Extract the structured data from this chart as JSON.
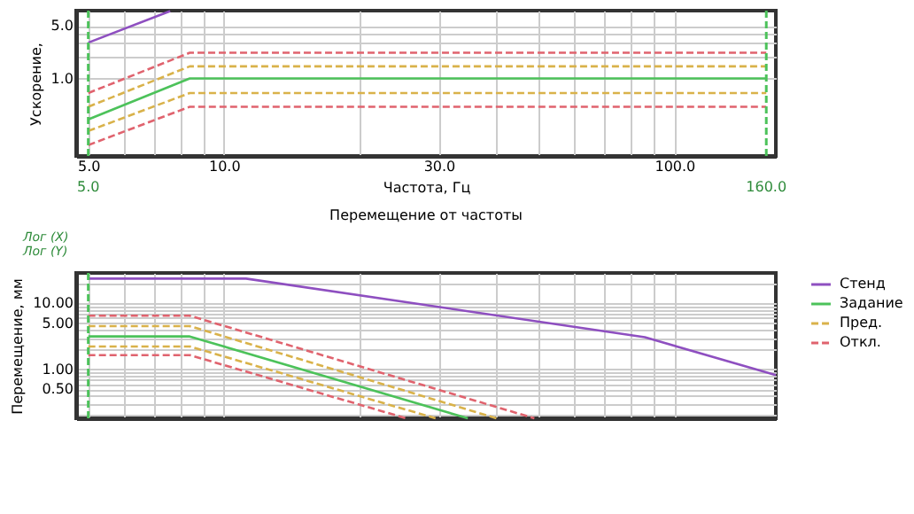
{
  "chart_data": [
    {
      "type": "line",
      "ylabel": "Ускорение,",
      "xlabel": "Частота, Гц",
      "log": "xy",
      "grid": true,
      "marker": "none",
      "xlim": [
        4.7,
        168
      ],
      "ylim": [
        0.093,
        8
      ],
      "xticks": [
        {
          "value": 5,
          "label": "5.0"
        },
        {
          "value": 6,
          "label": null
        },
        {
          "value": 7,
          "label": null
        },
        {
          "value": 8,
          "label": null
        },
        {
          "value": 9,
          "label": null
        },
        {
          "value": 10,
          "label": "10.0"
        },
        {
          "value": 20,
          "label": null
        },
        {
          "value": 30,
          "label": "30.0"
        },
        {
          "value": 40,
          "label": null
        },
        {
          "value": 50,
          "label": null
        },
        {
          "value": 60,
          "label": null
        },
        {
          "value": 70,
          "label": null
        },
        {
          "value": 80,
          "label": null
        },
        {
          "value": 90,
          "label": null
        },
        {
          "value": 100,
          "label": "100.0"
        }
      ],
      "yticks": [
        {
          "value": 1,
          "label": "1.0"
        },
        {
          "value": 2,
          "label": null
        },
        {
          "value": 3,
          "label": null
        },
        {
          "value": 4,
          "label": null
        },
        {
          "value": 5,
          "label": "5.0"
        }
      ],
      "series": [
        {
          "color": "#8e4fc0",
          "line_style": "solid",
          "x": [
            5,
            7.6
          ],
          "values": [
            3.0,
            7.9
          ]
        },
        {
          "color": "#e0636e",
          "line_style": "dashed",
          "x": [
            5,
            8.4,
            160
          ],
          "values": [
            0.64,
            2.2,
            2.2
          ]
        },
        {
          "color": "#d9b24a",
          "line_style": "dashed",
          "x": [
            5,
            8.4,
            160
          ],
          "values": [
            0.42,
            1.45,
            1.45
          ]
        },
        {
          "color": "#4cc25a",
          "line_style": "solid",
          "x": [
            5,
            8.4,
            160
          ],
          "values": [
            0.285,
            1.0,
            1.0
          ]
        },
        {
          "color": "#d9b24a",
          "line_style": "dashed",
          "x": [
            5,
            8.4,
            160
          ],
          "values": [
            0.2,
            0.64,
            0.64
          ]
        },
        {
          "color": "#e0636e",
          "line_style": "dashed",
          "x": [
            5,
            8.4,
            160
          ],
          "values": [
            0.13,
            0.42,
            0.42
          ]
        }
      ],
      "ref_lines": [
        {
          "axis": "x",
          "value": 5,
          "label": "5.0",
          "color": "#4cc25a",
          "line_style": "dashed"
        },
        {
          "axis": "x",
          "value": 160,
          "label": "160.0",
          "color": "#4cc25a",
          "line_style": "dashed"
        }
      ]
    },
    {
      "type": "line",
      "title": "Перемещение от частоты",
      "ylabel": "Перемещение, мм",
      "annotations": [
        "Лог (X)",
        "Лог (Y)"
      ],
      "log": "xy",
      "grid": true,
      "marker": "none",
      "legend": "right",
      "tick_labels": "y",
      "xlim": [
        4.7,
        168
      ],
      "ylim": [
        0.18,
        29
      ],
      "xticks": [
        {
          "value": 5,
          "label": null
        },
        {
          "value": 6,
          "label": null
        },
        {
          "value": 7,
          "label": null
        },
        {
          "value": 8,
          "label": null
        },
        {
          "value": 9,
          "label": null
        },
        {
          "value": 10,
          "label": null
        },
        {
          "value": 20,
          "label": null
        },
        {
          "value": 30,
          "label": null
        },
        {
          "value": 40,
          "label": null
        },
        {
          "value": 50,
          "label": null
        },
        {
          "value": 60,
          "label": null
        },
        {
          "value": 70,
          "label": null
        },
        {
          "value": 80,
          "label": null
        },
        {
          "value": 90,
          "label": null
        },
        {
          "value": 100,
          "label": null
        }
      ],
      "yticks": [
        {
          "value": 0.2,
          "label": null
        },
        {
          "value": 0.3,
          "label": null
        },
        {
          "value": 0.4,
          "label": null
        },
        {
          "value": 0.5,
          "label": "0.50"
        },
        {
          "value": 0.6,
          "label": null
        },
        {
          "value": 0.7,
          "label": null
        },
        {
          "value": 0.8,
          "label": null
        },
        {
          "value": 0.9,
          "label": null
        },
        {
          "value": 1,
          "label": "1.00"
        },
        {
          "value": 2,
          "label": null
        },
        {
          "value": 3,
          "label": null
        },
        {
          "value": 4,
          "label": null
        },
        {
          "value": 5,
          "label": "5.00"
        },
        {
          "value": 6,
          "label": null
        },
        {
          "value": 7,
          "label": null
        },
        {
          "value": 8,
          "label": null
        },
        {
          "value": 9,
          "label": null
        },
        {
          "value": 10,
          "label": "10.00"
        },
        {
          "value": 20,
          "label": null
        }
      ],
      "series": [
        {
          "name": "Стенд",
          "color": "#8e4fc0",
          "line_style": "solid",
          "x": [
            5,
            11.2,
            86,
            168
          ],
          "values": [
            23.8,
            23.8,
            3.06,
            0.815
          ]
        },
        {
          "name": "Задание",
          "color": "#4cc25a",
          "line_style": "solid",
          "x": [
            5,
            8.4,
            34.8
          ],
          "values": [
            3.15,
            3.15,
            0.18
          ]
        },
        {
          "name": "Пред.",
          "color": "#d9b24a",
          "line_style": "dashed",
          "x": [
            5,
            8.4,
            40.3
          ],
          "values": [
            4.52,
            4.52,
            0.18
          ]
        },
        {
          "name": "Откл.",
          "color": "#e0636e",
          "line_style": "dashed",
          "x": [
            5,
            8.4,
            48.9
          ],
          "values": [
            6.5,
            6.5,
            0.18
          ]
        },
        {
          "color": "#d9b24a",
          "line_style": "dashed",
          "x": [
            5,
            8.4,
            29.5
          ],
          "values": [
            2.22,
            2.22,
            0.18
          ]
        },
        {
          "color": "#e0636e",
          "line_style": "dashed",
          "x": [
            5,
            8.4,
            25.4
          ],
          "values": [
            1.64,
            1.64,
            0.18
          ]
        }
      ],
      "ref_lines": [
        {
          "axis": "x",
          "value": 5,
          "color": "#4cc25a",
          "line_style": "dashed"
        }
      ]
    }
  ]
}
